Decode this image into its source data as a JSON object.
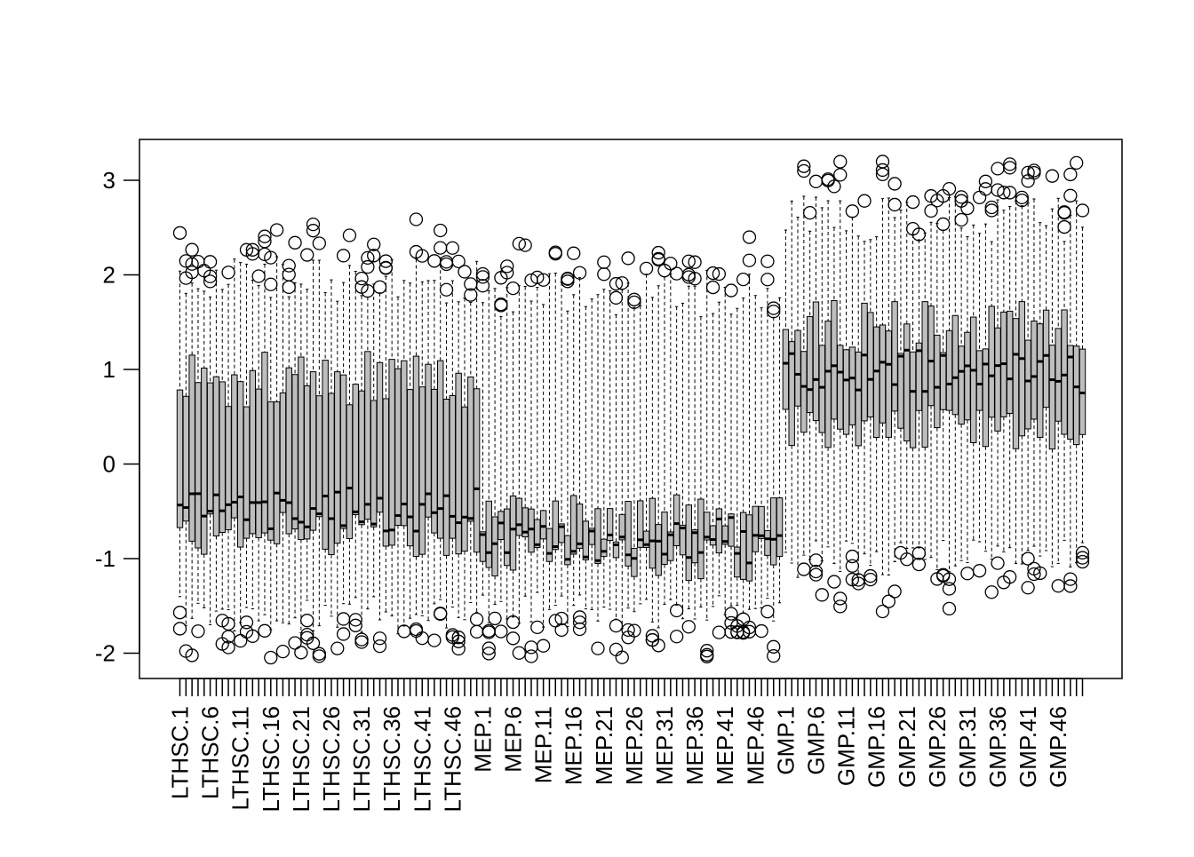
{
  "chart_data": {
    "type": "boxplot",
    "title": "",
    "xlabel": "",
    "ylabel": "",
    "ylim": [
      -2.2,
      3.4
    ],
    "yticks": [
      -2,
      -1,
      0,
      1,
      2,
      3
    ],
    "ytick_labels": [
      "-2",
      "-1",
      "0",
      "1",
      "2",
      "3"
    ],
    "grid": false,
    "legend": "none",
    "box_fill": "#bebebe",
    "groups": [
      {
        "prefix": "LTHSC",
        "count": 50
      },
      {
        "prefix": "MEP",
        "count": 50
      },
      {
        "prefix": "GMP",
        "count": 50
      }
    ],
    "xtick_labels": [
      "LTHSC.1",
      "LTHSC.6",
      "LTHSC.11",
      "LTHSC.16",
      "LTHSC.21",
      "LTHSC.26",
      "LTHSC.31",
      "LTHSC.36",
      "LTHSC.41",
      "LTHSC.46",
      "MEP.1",
      "MEP.6",
      "MEP.11",
      "MEP.16",
      "MEP.21",
      "MEP.26",
      "MEP.31",
      "MEP.36",
      "MEP.41",
      "MEP.46",
      "GMP.1",
      "GMP.6",
      "GMP.11",
      "GMP.16",
      "GMP.21",
      "GMP.26",
      "GMP.31",
      "GMP.36",
      "GMP.41",
      "GMP.46"
    ],
    "xtick_every": 5,
    "group_summary": [
      {
        "group": "LTHSC",
        "q1": -0.75,
        "median": -0.5,
        "q3": 0.9,
        "whisker_low": -1.6,
        "whisker_high": 1.95
      },
      {
        "group": "MEP",
        "q1": -1.0,
        "median": -0.8,
        "q3": -0.6,
        "whisker_low": -1.55,
        "whisker_high": 1.8
      },
      {
        "group": "GMP",
        "q1": 0.4,
        "median": 1.0,
        "q3": 1.45,
        "whisker_low": -1.0,
        "whisker_high": 2.6
      }
    ]
  }
}
